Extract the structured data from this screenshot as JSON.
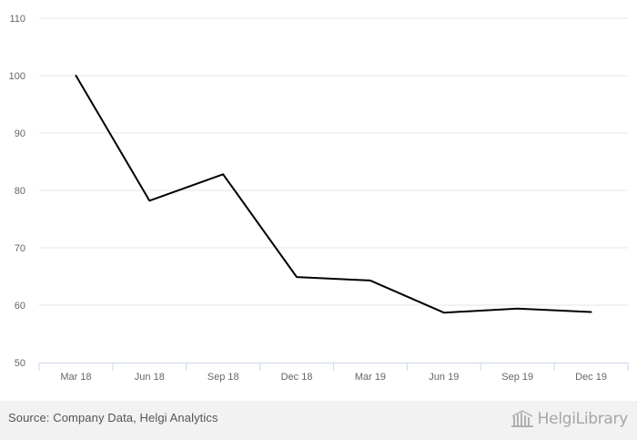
{
  "chart_data": {
    "type": "line",
    "title": "",
    "xlabel": "",
    "ylabel": "",
    "categories": [
      "Mar 18",
      "Jun 18",
      "Sep 18",
      "Dec 18",
      "Mar 19",
      "Jun 19",
      "Sep 19",
      "Dec 19"
    ],
    "series": [
      {
        "values": [
          100,
          78.2,
          82.8,
          64.9,
          64.3,
          58.7,
          59.4,
          58.8
        ]
      }
    ],
    "ylim": [
      50,
      110
    ],
    "yticks": [
      50,
      60,
      70,
      80,
      90,
      100,
      110
    ],
    "grid": true,
    "legend": "none",
    "colors": {
      "line": "#000000",
      "grid": "#e6e6e6",
      "axis": "#ccd6eb",
      "tick_label": "#666666"
    }
  },
  "footer": {
    "source": "Source: Company Data, Helgi Analytics",
    "brand_name": "HelgiLibrary",
    "brand_icon": "library-icon"
  }
}
